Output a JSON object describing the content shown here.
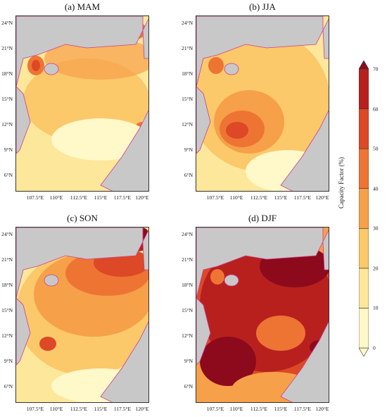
{
  "panels": [
    {
      "id": "mam",
      "title": "(a) MAM"
    },
    {
      "id": "jja",
      "title": "(b) JJA"
    },
    {
      "id": "son",
      "title": "(c) SON"
    },
    {
      "id": "djf",
      "title": "(d) DJF"
    }
  ],
  "lat_ticks": [
    "24°N",
    "21°N",
    "18°N",
    "15°N",
    "12°N",
    "9°N",
    "6°N"
  ],
  "lon_ticks": [
    "107.5°E",
    "110°E",
    "112.5°E",
    "115°E",
    "117.5°E",
    "120°E"
  ],
  "colorbar": {
    "label": "Capacity Factor (%)",
    "ticks": [
      "0",
      "10",
      "20",
      "30",
      "40",
      "50",
      "60",
      "70"
    ],
    "colors": [
      "#fff8c8",
      "#fde79a",
      "#fbc86a",
      "#f6a04a",
      "#ee7434",
      "#dd4826",
      "#b8201e",
      "#8c0a1c"
    ]
  },
  "colors": {
    "land": "#c8c8c8",
    "coast": "#d23c8c"
  }
}
